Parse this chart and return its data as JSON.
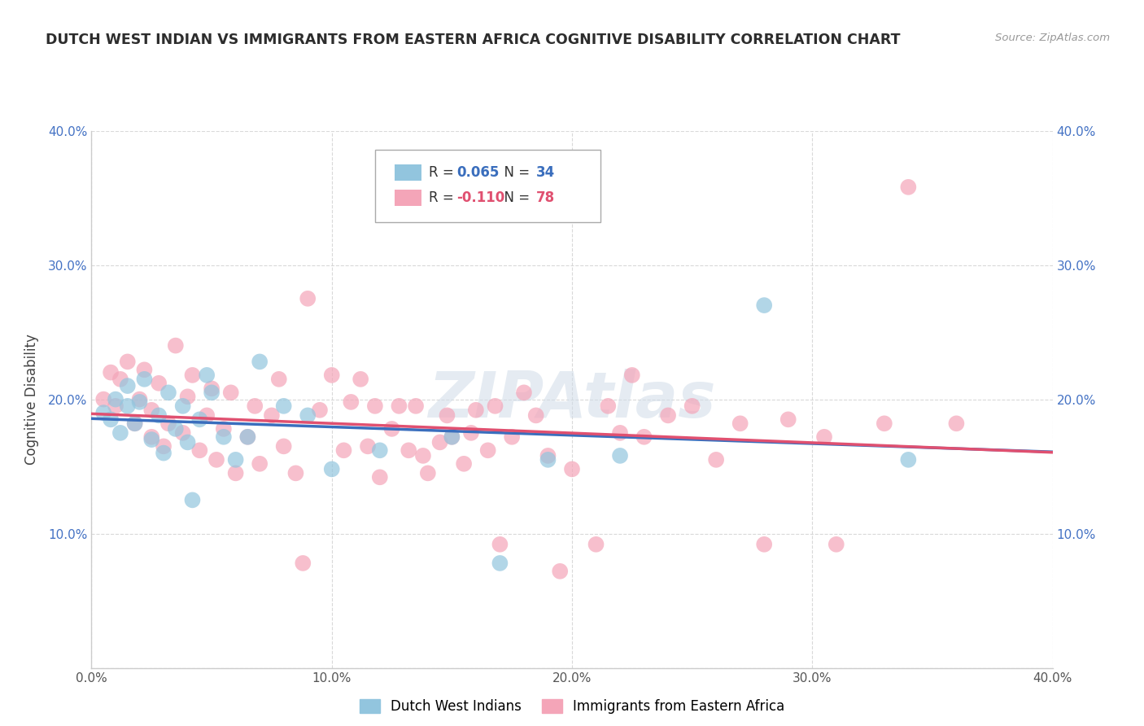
{
  "title": "DUTCH WEST INDIAN VS IMMIGRANTS FROM EASTERN AFRICA COGNITIVE DISABILITY CORRELATION CHART",
  "source": "Source: ZipAtlas.com",
  "ylabel": "Cognitive Disability",
  "xlim": [
    0.0,
    0.4
  ],
  "ylim": [
    0.0,
    0.4
  ],
  "legend_labels": [
    "Dutch West Indians",
    "Immigrants from Eastern Africa"
  ],
  "blue_R": 0.065,
  "blue_N": 34,
  "pink_R": -0.11,
  "pink_N": 78,
  "blue_color": "#92c5de",
  "pink_color": "#f4a5b8",
  "blue_line_color": "#3a6ebd",
  "pink_line_color": "#e05070",
  "grid_color": "#d0d0d0",
  "watermark": "ZIPAtlas",
  "background_color": "#ffffff",
  "blue_x": [
    0.005,
    0.008,
    0.01,
    0.012,
    0.015,
    0.015,
    0.018,
    0.02,
    0.022,
    0.025,
    0.028,
    0.03,
    0.032,
    0.035,
    0.038,
    0.04,
    0.042,
    0.045,
    0.048,
    0.05,
    0.055,
    0.06,
    0.065,
    0.07,
    0.08,
    0.09,
    0.1,
    0.12,
    0.15,
    0.17,
    0.19,
    0.22,
    0.28,
    0.34
  ],
  "blue_y": [
    0.19,
    0.185,
    0.2,
    0.175,
    0.195,
    0.21,
    0.182,
    0.198,
    0.215,
    0.17,
    0.188,
    0.16,
    0.205,
    0.178,
    0.195,
    0.168,
    0.125,
    0.185,
    0.218,
    0.205,
    0.172,
    0.155,
    0.172,
    0.228,
    0.195,
    0.188,
    0.148,
    0.162,
    0.172,
    0.078,
    0.155,
    0.158,
    0.27,
    0.155
  ],
  "pink_x": [
    0.005,
    0.008,
    0.01,
    0.012,
    0.015,
    0.018,
    0.02,
    0.022,
    0.025,
    0.025,
    0.028,
    0.03,
    0.032,
    0.035,
    0.038,
    0.04,
    0.042,
    0.045,
    0.048,
    0.05,
    0.052,
    0.055,
    0.058,
    0.06,
    0.065,
    0.068,
    0.07,
    0.075,
    0.078,
    0.08,
    0.085,
    0.088,
    0.09,
    0.095,
    0.1,
    0.105,
    0.108,
    0.112,
    0.115,
    0.118,
    0.12,
    0.125,
    0.128,
    0.132,
    0.135,
    0.138,
    0.14,
    0.145,
    0.148,
    0.15,
    0.155,
    0.158,
    0.16,
    0.165,
    0.168,
    0.17,
    0.175,
    0.18,
    0.185,
    0.19,
    0.195,
    0.2,
    0.21,
    0.215,
    0.22,
    0.225,
    0.23,
    0.24,
    0.25,
    0.26,
    0.27,
    0.28,
    0.29,
    0.305,
    0.31,
    0.33,
    0.34,
    0.36
  ],
  "pink_y": [
    0.2,
    0.22,
    0.195,
    0.215,
    0.228,
    0.182,
    0.2,
    0.222,
    0.172,
    0.192,
    0.212,
    0.165,
    0.182,
    0.24,
    0.175,
    0.202,
    0.218,
    0.162,
    0.188,
    0.208,
    0.155,
    0.178,
    0.205,
    0.145,
    0.172,
    0.195,
    0.152,
    0.188,
    0.215,
    0.165,
    0.145,
    0.078,
    0.275,
    0.192,
    0.218,
    0.162,
    0.198,
    0.215,
    0.165,
    0.195,
    0.142,
    0.178,
    0.195,
    0.162,
    0.195,
    0.158,
    0.145,
    0.168,
    0.188,
    0.172,
    0.152,
    0.175,
    0.192,
    0.162,
    0.195,
    0.092,
    0.172,
    0.205,
    0.188,
    0.158,
    0.072,
    0.148,
    0.092,
    0.195,
    0.175,
    0.218,
    0.172,
    0.188,
    0.195,
    0.155,
    0.182,
    0.092,
    0.185,
    0.172,
    0.092,
    0.182,
    0.358,
    0.182
  ]
}
